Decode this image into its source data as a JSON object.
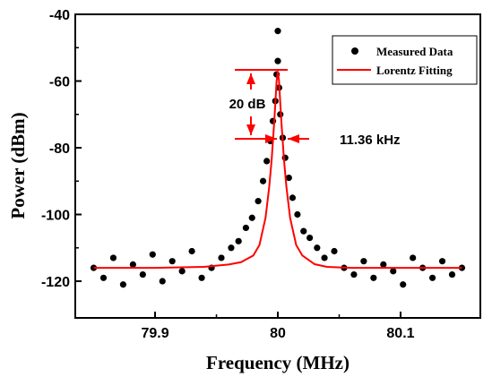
{
  "chart_data": {
    "type": "scatter",
    "xlabel": "Frequency (MHz)",
    "ylabel": "Power (dBm)",
    "xlim": [
      79.835,
      80.165
    ],
    "ylim": [
      -131,
      -40
    ],
    "x_ticks": [
      {
        "value": 79.9,
        "label": "79.9"
      },
      {
        "value": 80.0,
        "label": "80"
      },
      {
        "value": 80.1,
        "label": "80.1"
      }
    ],
    "y_ticks": [
      {
        "value": -40,
        "label": "-40"
      },
      {
        "value": -60,
        "label": "-60"
      },
      {
        "value": -80,
        "label": "-80"
      },
      {
        "value": -100,
        "label": "-100"
      },
      {
        "value": -120,
        "label": "-120"
      }
    ],
    "grid": false,
    "legend_position": "top-right",
    "colors": {
      "measured": "#000000",
      "fit": "#ff0000"
    },
    "series": [
      {
        "name": "Measured Data",
        "kind": "scatter",
        "x": [
          79.85,
          79.858,
          79.866,
          79.874,
          79.882,
          79.89,
          79.898,
          79.906,
          79.914,
          79.922,
          79.93,
          79.938,
          79.946,
          79.954,
          79.962,
          79.968,
          79.974,
          79.979,
          79.984,
          79.988,
          79.991,
          79.994,
          79.996,
          79.998,
          79.999,
          80.0,
          80.0,
          80.001,
          80.002,
          80.004,
          80.006,
          80.009,
          80.012,
          80.016,
          80.021,
          80.026,
          80.032,
          80.038,
          80.046,
          80.054,
          80.062,
          80.07,
          80.078,
          80.086,
          80.094,
          80.102,
          80.11,
          80.118,
          80.126,
          80.134,
          80.142,
          80.15
        ],
        "y": [
          -116,
          -119,
          -113,
          -121,
          -115,
          -118,
          -112,
          -120,
          -114,
          -117,
          -111,
          -119,
          -116,
          -113,
          -110,
          -108,
          -104,
          -101,
          -96,
          -90,
          -84,
          -78,
          -72,
          -66,
          -58,
          -45,
          -54,
          -62,
          -70,
          -77,
          -83,
          -89,
          -95,
          -100,
          -105,
          -107,
          -110,
          -113,
          -111,
          -116,
          -118,
          -114,
          -119,
          -115,
          -117,
          -121,
          -113,
          -116,
          -119,
          -114,
          -118,
          -116
        ]
      },
      {
        "name": "Lorentz Fitting",
        "kind": "line",
        "center": 80.0,
        "fwhm_mhz": 0.00569,
        "peak": -57,
        "baseline": -116,
        "x": [
          79.85,
          79.9,
          79.94,
          79.96,
          79.97,
          79.98,
          79.985,
          79.99,
          79.993,
          79.995,
          79.997,
          79.998,
          79.999,
          80.0,
          80.001,
          80.002,
          80.003,
          80.005,
          80.007,
          80.01,
          80.015,
          80.02,
          80.03,
          80.04,
          80.06,
          80.1,
          80.15
        ],
        "y": [
          -116.0,
          -116.0,
          -115.7,
          -115.0,
          -114.3,
          -112.3,
          -109.2,
          -101.0,
          -91.7,
          -83.5,
          -72.7,
          -66.6,
          -60.1,
          -57.0,
          -60.1,
          -66.6,
          -72.7,
          -83.5,
          -91.7,
          -101.0,
          -109.2,
          -112.3,
          -114.9,
          -115.7,
          -116.0,
          -116.0,
          -116.0
        ]
      }
    ],
    "annotations": [
      {
        "label": "20 dB",
        "kind": "vertical-span",
        "y_top": -57,
        "y_bottom": -77
      },
      {
        "label": "11.36 kHz",
        "kind": "horizontal-width",
        "y": -77
      }
    ]
  }
}
